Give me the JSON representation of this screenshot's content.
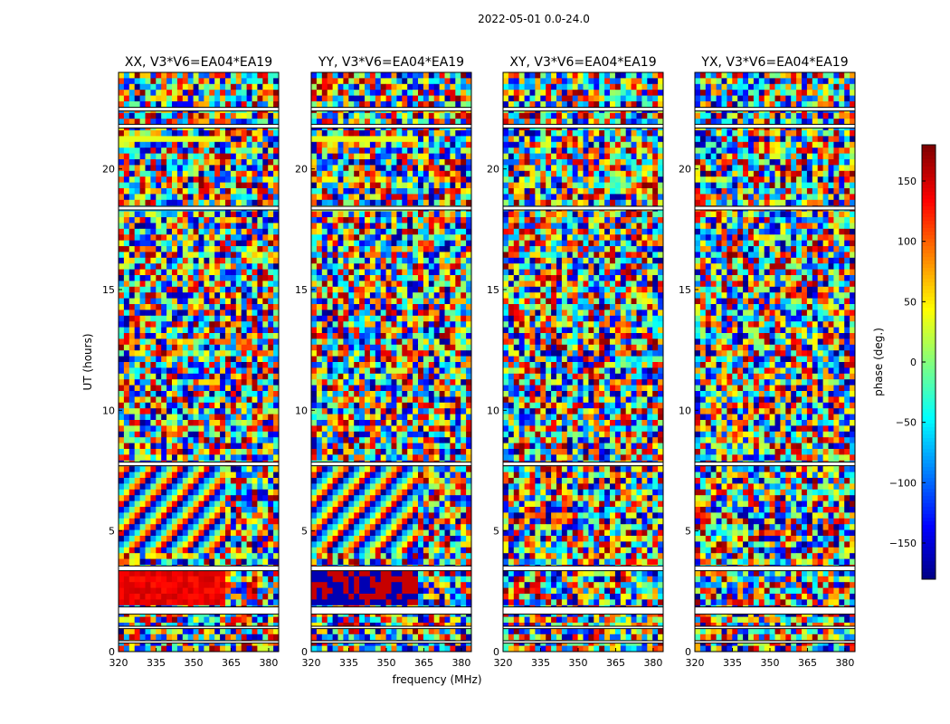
{
  "suptitle": "2022-05-01 0.0-24.0",
  "colors": {
    "frame": "#000000",
    "gap": "#ffffff"
  },
  "chart_data": {
    "type": "heatmap",
    "xlabel": "frequency (MHz)",
    "ylabel": "UT (hours)",
    "colorbar_label": "phase (deg.)",
    "xlim": [
      320,
      384
    ],
    "ylim": [
      0,
      24
    ],
    "xticks": [
      320,
      335,
      350,
      365,
      380
    ],
    "yticks": [
      0,
      5,
      10,
      15,
      20
    ],
    "clim": [
      -180,
      180
    ],
    "cticks": [
      -150,
      -100,
      -50,
      0,
      50,
      100,
      150
    ],
    "colormap": "jet",
    "panels": [
      {
        "title": "XX, V3*V6=EA04*EA19",
        "pol": "XX"
      },
      {
        "title": "YY, V3*V6=EA04*EA19",
        "pol": "YY"
      },
      {
        "title": "XY, V3*V6=EA04*EA19",
        "pol": "XY"
      },
      {
        "title": "YX, V3*V6=EA04*EA19",
        "pol": "YX"
      }
    ],
    "flagged_ut_ranges": [
      [
        0.35,
        0.45
      ],
      [
        0.95,
        1.05
      ],
      [
        1.55,
        1.85
      ],
      [
        3.35,
        3.55
      ],
      [
        7.7,
        7.85
      ],
      [
        18.3,
        18.45
      ],
      [
        21.7,
        21.85
      ],
      [
        22.4,
        22.55
      ]
    ]
  }
}
